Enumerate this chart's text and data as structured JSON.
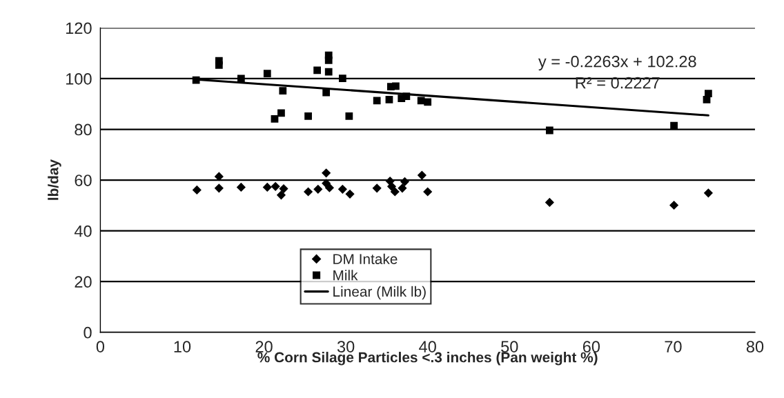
{
  "chart_data": {
    "type": "scatter",
    "xlabel": "% Corn Silage Particles <.3 inches (Pan weight %)",
    "ylabel": "lb/day",
    "xlim": [
      0,
      80
    ],
    "xticks": [
      0,
      10,
      20,
      30,
      40,
      50,
      60,
      70,
      80
    ],
    "ylim": [
      0,
      120
    ],
    "yticks": [
      0,
      20,
      40,
      60,
      80,
      100,
      120
    ],
    "grid": "y",
    "legend": "bottom left",
    "annotations": [
      "y = -0.2263x + 102.28",
      "R² = 0.2227"
    ],
    "series": [
      {
        "name": "DM Intake",
        "marker": "diamond",
        "color": "#000000",
        "x": [
          11.8,
          14.5,
          14.5,
          17.2,
          20.4,
          21.4,
          22.4,
          22.1,
          25.4,
          26.6,
          27.6,
          27.6,
          28.0,
          29.6,
          30.5,
          33.8,
          35.4,
          35.6,
          36.0,
          37.2,
          36.9,
          39.3,
          40.0,
          54.9,
          70.1,
          74.3
        ],
        "values": [
          56.1,
          61.4,
          56.8,
          57.2,
          57.2,
          57.5,
          56.6,
          54.1,
          55.4,
          56.4,
          62.8,
          58.7,
          57.0,
          56.4,
          54.5,
          56.8,
          59.6,
          57.5,
          55.4,
          59.4,
          56.8,
          61.9,
          55.4,
          51.2,
          50.1,
          54.9
        ]
      },
      {
        "name": "Milk",
        "marker": "square",
        "color": "#000000",
        "x": [
          11.7,
          14.5,
          14.5,
          17.2,
          20.4,
          22.3,
          22.1,
          21.3,
          25.4,
          26.5,
          27.9,
          27.6,
          29.6,
          30.4,
          33.8,
          27.9,
          27.9,
          35.3,
          35.5,
          36.1,
          36.8,
          37.4,
          39.2,
          40.0,
          54.9,
          70.1,
          74.3,
          74.1
        ],
        "values": [
          99.4,
          107.0,
          105.3,
          100.0,
          102.0,
          95.2,
          86.4,
          84.1,
          85.2,
          103.3,
          102.7,
          94.5,
          100.1,
          85.2,
          91.3,
          109.2,
          107.2,
          91.7,
          96.8,
          97.0,
          92.2,
          93.0,
          91.3,
          90.8,
          79.6,
          81.5,
          94.1,
          91.7
        ]
      },
      {
        "name": "Linear (Milk lb)",
        "type": "line",
        "color": "#000000",
        "line_style": "solid",
        "x": [
          12,
          74.3
        ],
        "values": [
          99.6,
          85.5
        ]
      }
    ]
  }
}
